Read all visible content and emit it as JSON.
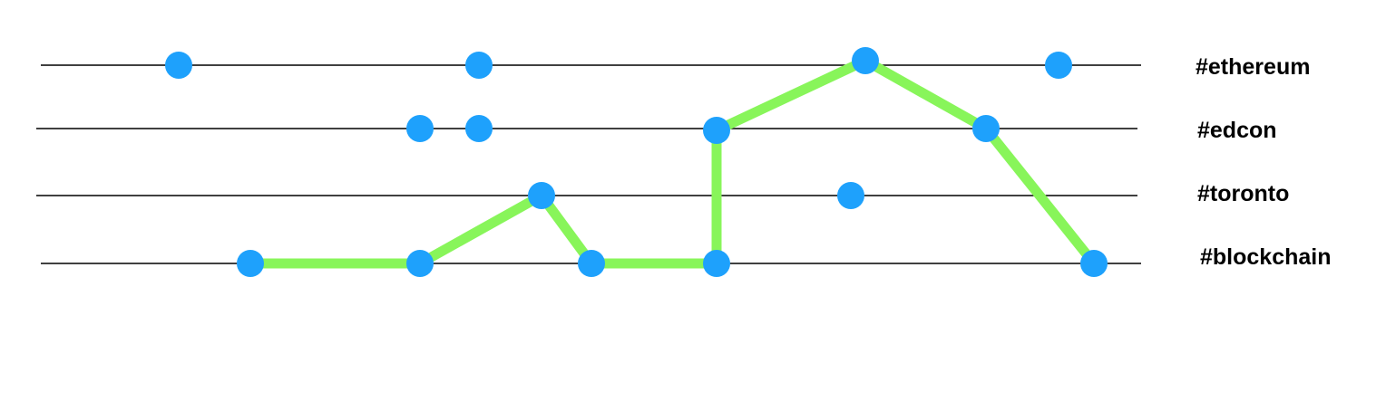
{
  "colors": {
    "lane_line": "#000000",
    "dot": "#1ea1fc",
    "path": "#88f55a",
    "label": "#000000",
    "background": "#ffffff"
  },
  "lanes": [
    {
      "id": "ethereum",
      "label": "#ethereum"
    },
    {
      "id": "edcon",
      "label": "#edcon"
    },
    {
      "id": "toronto",
      "label": "#toronto"
    },
    {
      "id": "blockchain",
      "label": "#blockchain"
    }
  ],
  "dots": [
    {
      "lane": "ethereum",
      "step": 1
    },
    {
      "lane": "ethereum",
      "step": 4
    },
    {
      "lane": "ethereum",
      "step": 8
    },
    {
      "lane": "ethereum",
      "step": 10
    },
    {
      "lane": "edcon",
      "step": 3
    },
    {
      "lane": "edcon",
      "step": 4
    },
    {
      "lane": "edcon",
      "step": 7
    },
    {
      "lane": "edcon",
      "step": 9
    },
    {
      "lane": "toronto",
      "step": 5
    },
    {
      "lane": "toronto",
      "step": 8
    },
    {
      "lane": "blockchain",
      "step": 2
    },
    {
      "lane": "blockchain",
      "step": 3
    },
    {
      "lane": "blockchain",
      "step": 6
    },
    {
      "lane": "blockchain",
      "step": 7
    },
    {
      "lane": "blockchain",
      "step": 11
    }
  ],
  "path": [
    {
      "lane": "blockchain",
      "step": 2
    },
    {
      "lane": "blockchain",
      "step": 3
    },
    {
      "lane": "toronto",
      "step": 5
    },
    {
      "lane": "blockchain",
      "step": 6
    },
    {
      "lane": "blockchain",
      "step": 7
    },
    {
      "lane": "edcon",
      "step": 7
    },
    {
      "lane": "ethereum",
      "step": 8
    },
    {
      "lane": "edcon",
      "step": 9
    },
    {
      "lane": "blockchain",
      "step": 11
    }
  ]
}
